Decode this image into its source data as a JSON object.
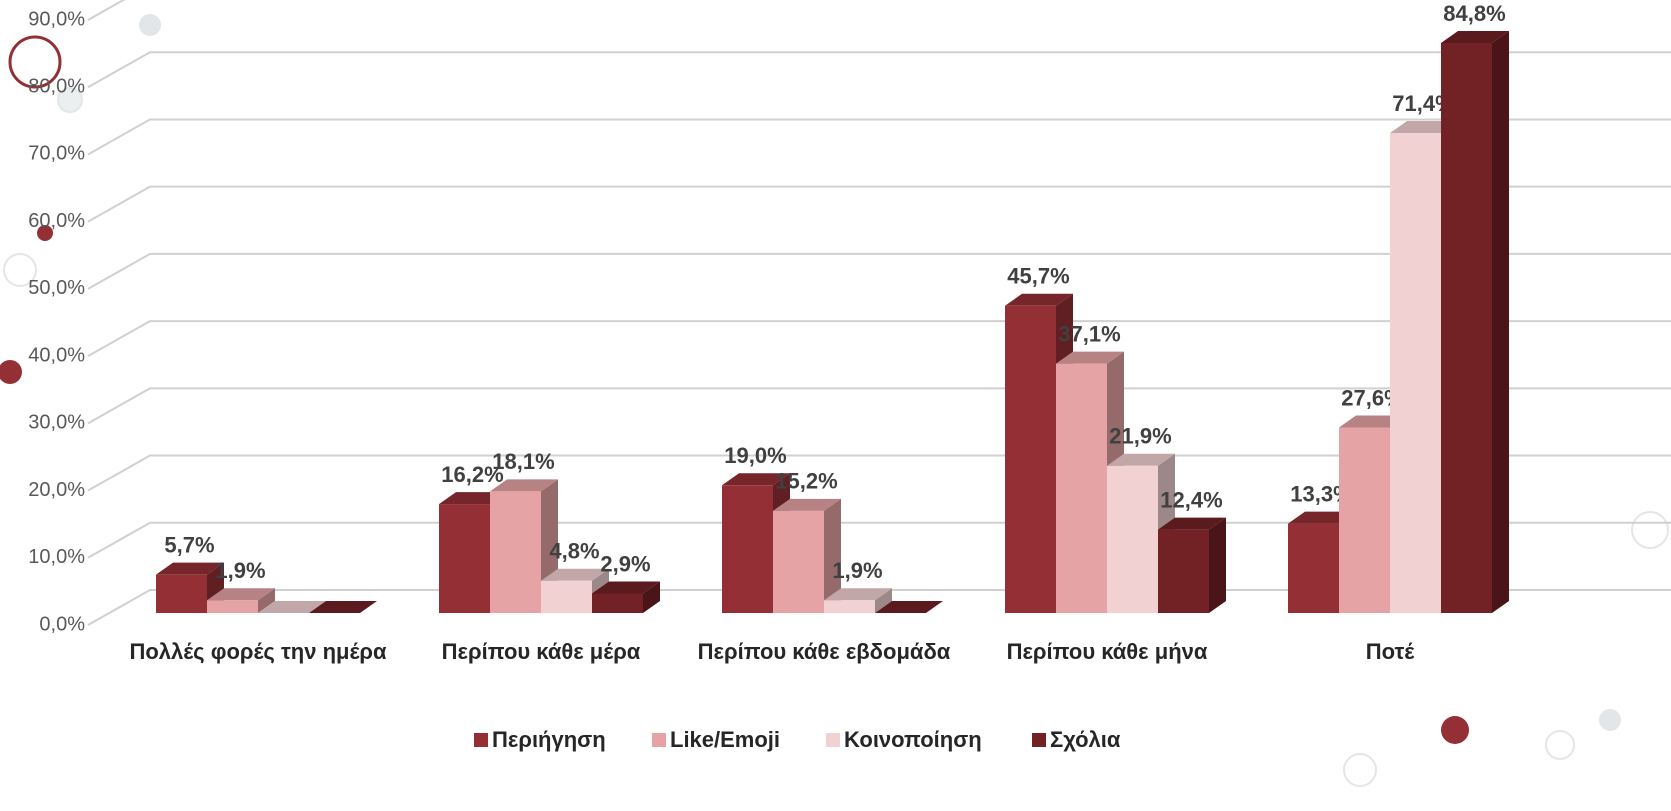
{
  "chart_data": {
    "type": "bar3d",
    "categories": [
      "Πολλές φορές την ημέρα",
      "Περίπου κάθε μέρα",
      "Περίπου κάθε εβδομάδα",
      "Περίπου κάθε μήνα",
      "Ποτέ"
    ],
    "series": [
      {
        "name": "Περιήγηση",
        "color": "#943035",
        "values": [
          5.7,
          16.2,
          19.0,
          45.7,
          13.3
        ],
        "value_labels": [
          "5,7%",
          "16,2%",
          "19,0%",
          "45,7%",
          "13,3%"
        ]
      },
      {
        "name": "Like/Emoji",
        "color": "#e5a3a5",
        "values": [
          1.9,
          18.1,
          15.2,
          37.1,
          27.6
        ],
        "value_labels": [
          "1,9%",
          "18,1%",
          "15,2%",
          "37,1%",
          "27,6%"
        ]
      },
      {
        "name": "Κοινοποίηση",
        "color": "#f2d1d2",
        "values": [
          0,
          4.8,
          1.9,
          21.9,
          71.4
        ],
        "value_labels": [
          null,
          "4,8%",
          "1,9%",
          "21,9%",
          "71,4%"
        ]
      },
      {
        "name": "Σχόλια",
        "color": "#722125",
        "values": [
          0,
          2.9,
          0,
          12.4,
          84.8
        ],
        "value_labels": [
          null,
          "2,9%",
          null,
          "12,4%",
          "84,8%"
        ]
      }
    ],
    "ylim": [
      0,
      90
    ],
    "yticks": [
      {
        "value": 0,
        "label": "0,0%"
      },
      {
        "value": 10,
        "label": "10,0%"
      },
      {
        "value": 20,
        "label": "20,0%"
      },
      {
        "value": 30,
        "label": "30,0%"
      },
      {
        "value": 40,
        "label": "40,0%"
      },
      {
        "value": 50,
        "label": "50,0%"
      },
      {
        "value": 60,
        "label": "60,0%"
      },
      {
        "value": 70,
        "label": "70,0%"
      },
      {
        "value": 80,
        "label": "80,0%"
      },
      {
        "value": 90,
        "label": "90,0%"
      }
    ],
    "grid": true,
    "legend": "bottom"
  }
}
